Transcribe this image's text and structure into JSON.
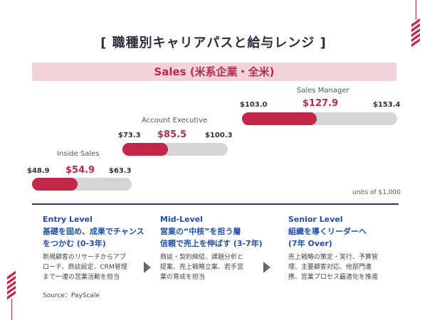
{
  "title": "[ 職種別キャリアパスと給与レンジ ]",
  "banner": "Sales (米系企業・全米)",
  "roles": [
    {
      "name": "Inside Sales",
      "min": "$48.9",
      "median": "$54.9",
      "max": "$63.3",
      "fill": 0.46
    },
    {
      "name": "Account Executive",
      "min": "$73.3",
      "median": "$85.5",
      "max": "$100.3",
      "fill": 0.43
    },
    {
      "name": "Sales Manager",
      "min": "$103.0",
      "median": "$127.9",
      "max": "$153.4",
      "fill": 0.48
    }
  ],
  "units": "units of $1,000",
  "levels": [
    {
      "head1": "Entry Level",
      "head2": "基礎を固め、成果でチャンス",
      "head3": "をつかむ (0-3年)",
      "desc1": "新規顧客のリサーチからアプ",
      "desc2": "ローチ、商談設定、CRM管理",
      "desc3": "まで一連の営業活動を担当"
    },
    {
      "head1": "Mid-Level",
      "head2": "営業の“中核”を担う層",
      "head3": "信頼で売上を伸ばす (3-7年)",
      "desc1": "商談・契約締結、課題分析と",
      "desc2": "提案、売上戦略立案、若手営",
      "desc3": "業の育成を担当"
    },
    {
      "head1": "Senior Level",
      "head2": "組織を導くリーダーへ",
      "head3": "(7年 Over)",
      "desc1": "売上戦略の策定・実行、予算管",
      "desc2": "理、主要顧客対応、他部門連",
      "desc3": "携、営業プロセス最適化を推進"
    }
  ],
  "source": "Source：PayScale",
  "colors": {
    "accent": "#c2274a",
    "track": "#d5d5d5",
    "banner_bg": "#f3d3d9",
    "level_head": "#1f4fa8"
  }
}
